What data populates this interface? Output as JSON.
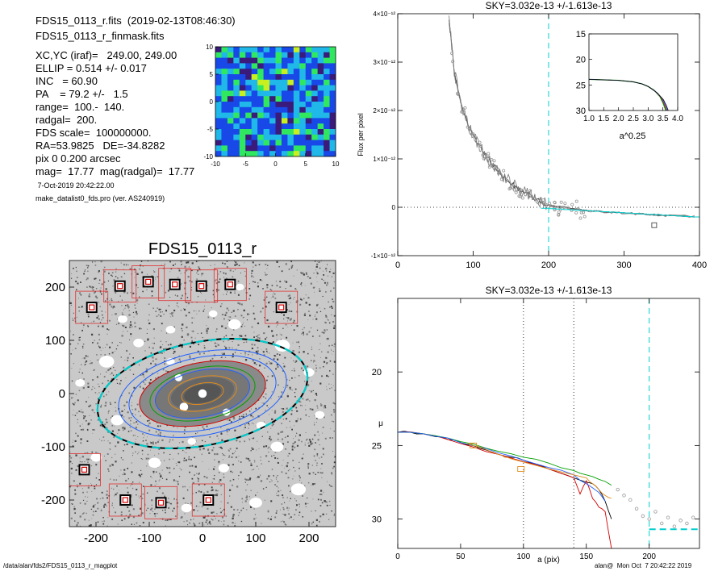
{
  "info": {
    "fits_line": "FDS15_0113_r.fits  (2019-02-13T08:46:30)",
    "mask_line": "FDS15_0113_r_finmask.fits",
    "params": [
      "XC,YC (iraf)=   249.00, 249.00",
      "ELLIP = 0.514 +/- 0.017",
      "INC   = 60.90",
      "PA    = 79.2 +/-   1.5",
      "range=  100.-  140.",
      "radgal=  200.",
      "FDS scale=  100000000.",
      "RA=53.9825   DE=-34.8282",
      "pix 0 0.200 arcsec",
      "mag=  17.77  mag(radgal)=  17.77"
    ],
    "date": " 7-Oct-2019 20:42:22.00",
    "program": "make_datalist0_fds.pro (ver. AS240919)"
  },
  "footer": {
    "path": "/data/alan/fds2/FDS15_0113_r_magplot",
    "stamp": "alan@  Mon Oct  7 20:42:22 2019"
  },
  "colors": {
    "bg": "#ffffff",
    "data_gray": "#999999",
    "dashed_cyan": "#00cccc",
    "red": "#d40000",
    "green": "#00a000",
    "blue": "#2060ff",
    "orange": "#e08a1a",
    "mask_box": "#e03030"
  },
  "chart_data": [
    {
      "type": "heatmap",
      "id": "residual_map",
      "title": "",
      "xlim": [
        -10,
        10
      ],
      "ylim": [
        -10,
        10
      ],
      "x_ticks": [
        "-10",
        "-5",
        "0",
        "5",
        "10"
      ],
      "y_ticks": [
        "-10",
        "-5",
        "0",
        "5",
        "10"
      ],
      "levels": [
        "#3a1a7a",
        "#1848e8",
        "#20b8e8",
        "#30e860",
        "#c8f020"
      ],
      "grid": false
    },
    {
      "type": "scatter",
      "id": "galaxy_image",
      "title": "FDS15_0113_r",
      "xlim": [
        -250,
        250
      ],
      "ylim": [
        -250,
        250
      ],
      "x_ticks": [
        "-200",
        "-100",
        "0",
        "100",
        "200"
      ],
      "y_ticks": [
        "-200",
        "-100",
        "0",
        "100",
        "200"
      ],
      "ellipses_a": [
        40,
        65,
        90,
        100,
        120,
        140,
        160,
        200,
        200
      ],
      "ellipse_colors": [
        "#e08a1a",
        "#e08a1a",
        "#2060ff",
        "#00a000",
        "#d40000",
        "#2060ff",
        "#2060ff",
        "#000000",
        "#00cccc"
      ],
      "ellip": 0.514,
      "pa_deg": 79.2,
      "mask_boxes": [
        {
          "x": -208,
          "y": 162
        },
        {
          "x": -155,
          "y": 202
        },
        {
          "x": -102,
          "y": 210
        },
        {
          "x": -52,
          "y": 205
        },
        {
          "x": -2,
          "y": 202
        },
        {
          "x": 52,
          "y": 205
        },
        {
          "x": 148,
          "y": 162
        },
        {
          "x": -222,
          "y": -143
        },
        {
          "x": -145,
          "y": -200
        },
        {
          "x": -78,
          "y": -205
        },
        {
          "x": 11,
          "y": -200
        }
      ]
    },
    {
      "type": "line",
      "id": "sky_profile",
      "title": "SKY=3.032e-13 +/-1.613e-13",
      "ylabel": "Flux per pixel",
      "xlim": [
        0,
        400
      ],
      "ylim": [
        -1e-12,
        4e-12
      ],
      "x_ticks": [
        "0",
        "100",
        "200",
        "300",
        "400"
      ],
      "y_ticks": [
        "-1×10⁻¹²",
        "0",
        "1×10⁻¹²",
        "2×10⁻¹²",
        "3×10⁻¹²",
        "4×10⁻¹²"
      ],
      "radgal": 200,
      "zero_line": 0,
      "series": [
        {
          "x": [
            68,
            75,
            85,
            95,
            105,
            115,
            125,
            135,
            145,
            155,
            165,
            175,
            185,
            195,
            205,
            220,
            240,
            260,
            280,
            300,
            330,
            360,
            400
          ],
          "y": [
            3.9e-12,
            2.8e-12,
            2.1e-12,
            1.65e-12,
            1.35e-12,
            1.1e-12,
            9e-13,
            7e-13,
            5.8e-13,
            4.5e-13,
            3.3e-13,
            2.5e-13,
            1.5e-13,
            8e-14,
            2e-14,
            0.0,
            -5e-14,
            -8e-14,
            -1e-13,
            -1.2e-13,
            -1.5e-13,
            -1.7e-13,
            -2e-13
          ]
        }
      ],
      "inset": {
        "xlabel": "a^0.25",
        "xlim": [
          1.0,
          4.0
        ],
        "ylim": [
          30,
          15
        ],
        "x_ticks": [
          "1.0",
          "1.5",
          "2.0",
          "2.5",
          "3.0",
          "3.5",
          "4.0"
        ],
        "y_ticks": [
          "15",
          "20",
          "25",
          "30"
        ],
        "series": [
          {
            "name": "",
            "x": [
              1.0,
              1.5,
              2.0,
              2.5,
              2.8,
              3.0,
              3.2,
              3.4,
              3.5,
              3.6
            ],
            "y": [
              23.9,
              24.0,
              24.1,
              24.4,
              24.8,
              25.3,
              26.0,
              27.3,
              28.5,
              30.0
            ]
          }
        ]
      }
    },
    {
      "type": "line",
      "id": "sb_profile",
      "title": "SKY=3.032e-13 +/-1.613e-13",
      "xlabel": "a (pix)",
      "ylabel": "μ",
      "xlim": [
        0,
        240
      ],
      "ylim": [
        32,
        15
      ],
      "x_ticks": [
        "0",
        "50",
        "100",
        "150",
        "200"
      ],
      "y_ticks": [
        "20",
        "25",
        "30"
      ],
      "range_lines": [
        100,
        140
      ],
      "radgal": 200,
      "sky_level": 30.7,
      "series": [
        {
          "name": "black",
          "color": "#000000",
          "x": [
            0,
            10,
            20,
            30,
            40,
            50,
            60,
            70,
            80,
            90,
            100,
            110,
            120,
            130,
            140,
            150,
            155,
            160,
            165,
            170
          ],
          "y": [
            24.1,
            24.1,
            24.2,
            24.4,
            24.6,
            24.8,
            25.0,
            25.3,
            25.6,
            25.8,
            26.0,
            26.3,
            26.6,
            26.9,
            27.2,
            27.5,
            27.6,
            28.0,
            28.8,
            30.0
          ]
        },
        {
          "name": "red",
          "color": "#d40000",
          "x": [
            0,
            20,
            40,
            60,
            80,
            100,
            120,
            140,
            145,
            150,
            155,
            160,
            165,
            170
          ],
          "y": [
            24.1,
            24.2,
            24.6,
            25.1,
            25.6,
            26.1,
            26.6,
            27.2,
            28.3,
            27.4,
            28.6,
            29.2,
            29.5,
            32.0
          ]
        },
        {
          "name": "green",
          "color": "#00a000",
          "x": [
            0,
            20,
            40,
            60,
            80,
            100,
            120,
            140,
            150,
            160,
            170
          ],
          "y": [
            24.1,
            24.2,
            24.5,
            24.9,
            25.4,
            25.8,
            26.2,
            26.7,
            27.0,
            27.3,
            27.7
          ]
        },
        {
          "name": "blue",
          "color": "#2060ff",
          "x": [
            0,
            20,
            40,
            60,
            80,
            100,
            120,
            140,
            150,
            160,
            165
          ],
          "y": [
            24.1,
            24.2,
            24.5,
            25.0,
            25.5,
            26.0,
            26.5,
            27.0,
            27.6,
            28.2,
            28.8
          ]
        },
        {
          "name": "orange",
          "color": "#e08a1a",
          "x": [
            55,
            60,
            65,
            80,
            85,
            90,
            150,
            155,
            160,
            165,
            170
          ],
          "y": [
            24.9,
            25.0,
            25.1,
            25.6,
            25.8,
            25.9,
            27.2,
            27.6,
            28.0,
            28.4,
            28.6
          ]
        }
      ],
      "points": {
        "x": [
          175,
          180,
          185,
          190,
          195,
          200,
          205,
          210,
          215,
          220,
          225,
          230,
          235
        ],
        "y": [
          28.0,
          28.4,
          28.7,
          29.3,
          29.8,
          30.0,
          29.5,
          30.3,
          29.9,
          30.5,
          30.1,
          30.3,
          29.9
        ]
      }
    }
  ]
}
